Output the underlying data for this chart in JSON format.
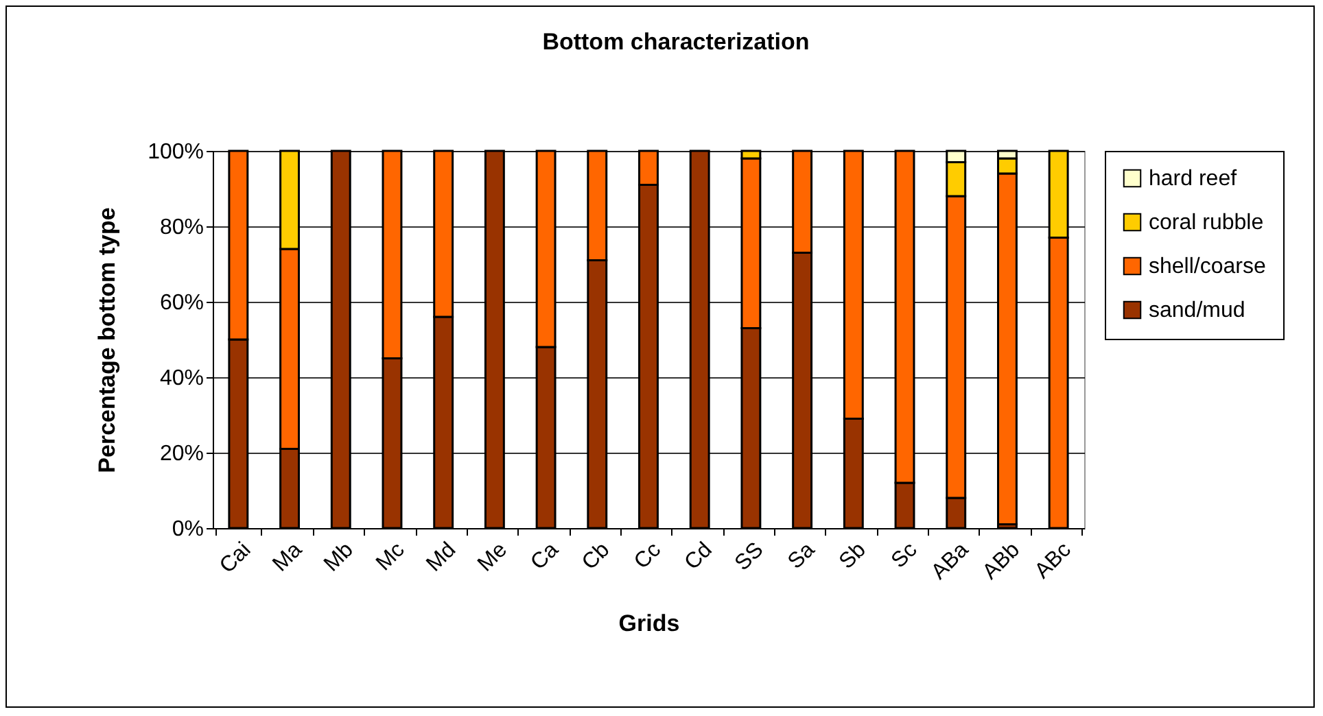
{
  "chart_data": {
    "type": "bar",
    "stacked": true,
    "title": "Bottom characterization",
    "xlabel": "Grids",
    "ylabel": "Percentage bottom type",
    "categories": [
      "Cai",
      "Ma",
      "Mb",
      "Mc",
      "Md",
      "Me",
      "Ca",
      "Cb",
      "Cc",
      "Cd",
      "SS",
      "Sa",
      "Sb",
      "Sc",
      "ABa",
      "ABb",
      "ABc"
    ],
    "series": [
      {
        "name": "sand/mud",
        "color": "#993300",
        "values": [
          50,
          21,
          100,
          45,
          56,
          100,
          48,
          71,
          91,
          100,
          53,
          73,
          29,
          12,
          8,
          1,
          0
        ]
      },
      {
        "name": "shell/coarse",
        "color": "#ff6600",
        "values": [
          50,
          53,
          0,
          55,
          44,
          0,
          52,
          29,
          9,
          0,
          45,
          27,
          71,
          88,
          80,
          93,
          77
        ]
      },
      {
        "name": "coral rubble",
        "color": "#ffcc00",
        "values": [
          0,
          26,
          0,
          0,
          0,
          0,
          0,
          0,
          0,
          0,
          2,
          0,
          0,
          0,
          9,
          4,
          23
        ]
      },
      {
        "name": "hard reef",
        "color": "#ffffcc",
        "values": [
          0,
          0,
          0,
          0,
          0,
          0,
          0,
          0,
          0,
          0,
          0,
          0,
          0,
          0,
          3,
          2,
          0
        ]
      }
    ],
    "ylim": [
      0,
      100
    ],
    "yticks": [
      {
        "value": 0,
        "label": "0%"
      },
      {
        "value": 20,
        "label": "20%"
      },
      {
        "value": 40,
        "label": "40%"
      },
      {
        "value": 60,
        "label": "60%"
      },
      {
        "value": 80,
        "label": "80%"
      },
      {
        "value": 100,
        "label": "100%"
      }
    ],
    "grid": "y",
    "legend": "right"
  }
}
